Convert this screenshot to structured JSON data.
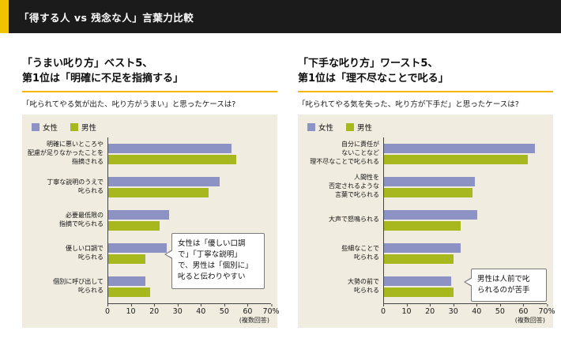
{
  "header": {
    "title": "「得する人 vs 残念な人」言葉力比較"
  },
  "colors": {
    "accent_yellow": "#eec500",
    "title_underline": "#f3b700",
    "panel_background": "#f0ecdf",
    "female_bar": "#8d92c4",
    "male_bar": "#a6b81d"
  },
  "chart_data": [
    {
      "type": "bar",
      "orientation": "horizontal",
      "title_lines": [
        "「うまい叱り方」ベスト5、",
        "第1位は「明確に不足を指摘する」"
      ],
      "subtitle": "「叱られてやる気が出た、叱り方がうまい」と思ったケースは?",
      "categories": [
        [
          "明確に悪いところや",
          "配慮が足りなかったことを",
          "指摘される"
        ],
        [
          "丁寧な説明のうえで",
          "叱られる"
        ],
        [
          "必要最低限の",
          "指摘で叱られる"
        ],
        [
          "優しい口調で",
          "叱られる"
        ],
        [
          "個別に呼び出して",
          "叱られる"
        ]
      ],
      "series": [
        {
          "key": "female",
          "name": "女性",
          "color": "#8d92c4",
          "values": [
            53,
            48,
            26,
            25,
            16
          ]
        },
        {
          "key": "male",
          "name": "男性",
          "color": "#a6b81d",
          "values": [
            55,
            43,
            22,
            16,
            18
          ]
        }
      ],
      "xlim": [
        0,
        70
      ],
      "ticks": [
        0,
        10,
        20,
        30,
        40,
        50,
        60,
        70
      ],
      "x_unit": "%",
      "axis_note": "(複数回答)",
      "callout_lines": [
        "女性は「優しい口調",
        "で」「丁寧な説明」",
        "で、男性は「個別に」",
        "叱ると伝わりやすい"
      ]
    },
    {
      "type": "bar",
      "orientation": "horizontal",
      "title_lines": [
        "「下手な叱り方」ワースト5、",
        "第1位は「理不尽なことで叱る」"
      ],
      "subtitle": "「叱られてやる気を失った、叱り方が下手だ」と思ったケースは?",
      "categories": [
        [
          "自分に責任が",
          "ないことなど",
          "理不尽なことで叱られる"
        ],
        [
          "人間性を",
          "否定されるような",
          "言葉で叱られる"
        ],
        [
          "大声で怒鳴られる"
        ],
        [
          "些細なことで",
          "叱られる"
        ],
        [
          "大勢の前で",
          "叱られる"
        ]
      ],
      "series": [
        {
          "key": "female",
          "name": "女性",
          "color": "#8d92c4",
          "values": [
            65,
            39,
            40,
            33,
            29
          ]
        },
        {
          "key": "male",
          "name": "男性",
          "color": "#a6b81d",
          "values": [
            62,
            38,
            33,
            30,
            30
          ]
        }
      ],
      "xlim": [
        0,
        70
      ],
      "ticks": [
        0,
        10,
        20,
        30,
        40,
        50,
        60,
        70
      ],
      "x_unit": "%",
      "axis_note": "(複数回答)",
      "callout_lines": [
        "男性は人前で叱",
        "られるのが苦手"
      ]
    }
  ]
}
